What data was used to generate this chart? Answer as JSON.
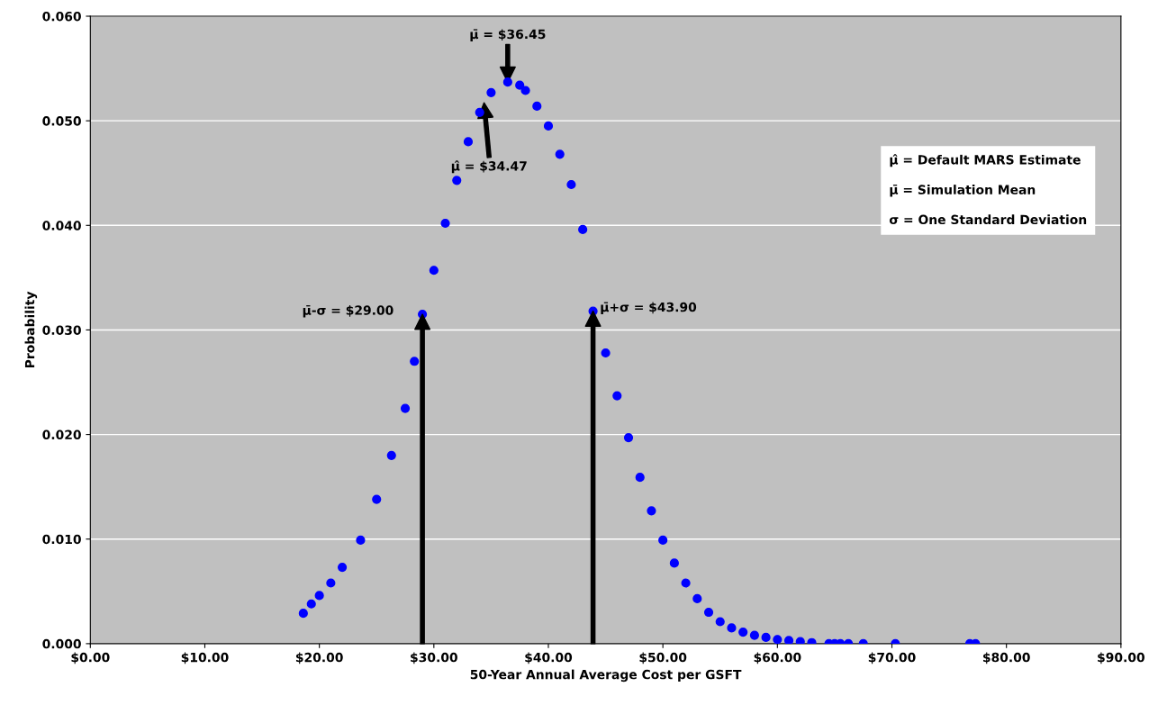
{
  "chart_data": {
    "type": "scatter",
    "xlabel": "50-Year Annual Average Cost per GSFT",
    "ylabel": "Probability",
    "x": [
      18.6,
      19.3,
      20,
      21,
      22,
      23.6,
      25,
      26.3,
      27.5,
      28.3,
      29,
      30,
      31,
      32,
      33,
      34,
      35,
      36.45,
      37.5,
      38,
      39,
      40,
      41,
      42,
      43,
      43.9,
      45,
      46,
      47,
      48,
      49,
      50,
      51,
      52,
      53,
      54,
      55,
      56,
      57,
      58,
      59,
      60,
      61,
      62,
      63,
      64.5,
      65,
      65.5,
      66.2,
      67.5,
      70.3,
      76.8,
      77.3
    ],
    "series": [
      {
        "color": "#0000ff",
        "values": [
          0.0029,
          0.0038,
          0.0046,
          0.0058,
          0.0073,
          0.0099,
          0.0138,
          0.018,
          0.0225,
          0.027,
          0.0315,
          0.0357,
          0.0402,
          0.0443,
          0.048,
          0.0508,
          0.0527,
          0.0537,
          0.0534,
          0.0529,
          0.0514,
          0.0495,
          0.0468,
          0.0439,
          0.0396,
          0.0318,
          0.0278,
          0.0237,
          0.0197,
          0.0159,
          0.0127,
          0.0099,
          0.0077,
          0.0058,
          0.0043,
          0.003,
          0.0021,
          0.0015,
          0.0011,
          0.0008,
          0.0006,
          0.0004,
          0.0003,
          0.0002,
          0.0001,
          0.0,
          0.0,
          0.0,
          0.0,
          0.0,
          0.0,
          0.0,
          0.0
        ]
      }
    ],
    "marker": "circle",
    "xlim": [
      0,
      90
    ],
    "ylim": [
      0,
      0.06
    ],
    "xticks": [
      {
        "value": 0,
        "label": "$0.00"
      },
      {
        "value": 10,
        "label": "$10.00"
      },
      {
        "value": 20,
        "label": "$20.00"
      },
      {
        "value": 30,
        "label": "$30.00"
      },
      {
        "value": 40,
        "label": "$40.00"
      },
      {
        "value": 50,
        "label": "$50.00"
      },
      {
        "value": 60,
        "label": "$60.00"
      },
      {
        "value": 70,
        "label": "$70.00"
      },
      {
        "value": 80,
        "label": "$80.00"
      },
      {
        "value": 90,
        "label": "$90.00"
      }
    ],
    "yticks": [
      {
        "value": 0,
        "label": "0.000"
      },
      {
        "value": 0.01,
        "label": "0.010"
      },
      {
        "value": 0.02,
        "label": "0.020"
      },
      {
        "value": 0.03,
        "label": "0.030"
      },
      {
        "value": 0.04,
        "label": "0.040"
      },
      {
        "value": 0.05,
        "label": "0.050"
      },
      {
        "value": 0.06,
        "label": "0.060"
      }
    ],
    "grid": "y",
    "annotations": [
      "μ̄ = $36.45",
      "μ̂ = $34.47",
      {
        "text": "μ̄-σ = $29.00",
        "x": 29.0,
        "y": 0.0315
      },
      {
        "text": "μ̄+σ = $43.90",
        "x": 43.9,
        "y": 0.0318
      },
      "μ̂ = Default MARS Estimate\n\nμ̄ = Simulation Mean\n\nσ = One Standard Deviation"
    ]
  }
}
